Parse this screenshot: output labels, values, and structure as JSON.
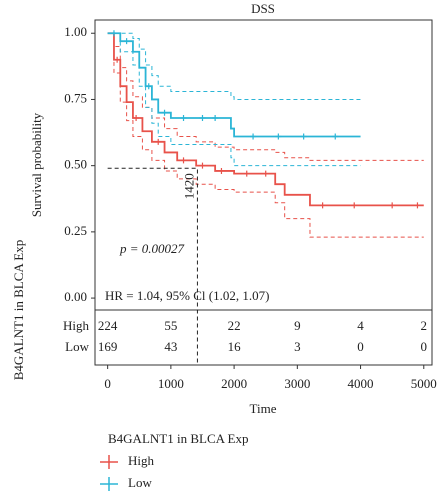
{
  "chart_data": {
    "type": "survival",
    "title": "DSS",
    "y_label": "Survival probability",
    "x_label": "Time",
    "xlim": [
      -200,
      5130
    ],
    "ylim": [
      -0.045,
      1.05
    ],
    "xticks": [
      0,
      1000,
      2000,
      3000,
      4000,
      5000
    ],
    "yticks": [
      {
        "value": 0,
        "label": "0.00"
      },
      {
        "value": 0.25,
        "label": "0.25"
      },
      {
        "value": 0.5,
        "label": "0.50"
      },
      {
        "value": 0.75,
        "label": "0.75"
      },
      {
        "value": 1,
        "label": "1.00"
      }
    ],
    "legend_title": "B4GALNT1 in BLCA Exp",
    "series": [
      {
        "name": "High",
        "color": "#e8524a",
        "x": [
          0,
          100,
          200,
          300,
          400,
          550,
          700,
          900,
          1100,
          1400,
          1700,
          2000,
          2650,
          2800,
          3200,
          5000
        ],
        "values": [
          1,
          0.9,
          0.8,
          0.74,
          0.68,
          0.63,
          0.59,
          0.55,
          0.52,
          0.5,
          0.48,
          0.47,
          0.43,
          0.39,
          0.35,
          0.35
        ],
        "upper": [
          1,
          0.95,
          0.87,
          0.82,
          0.76,
          0.72,
          0.68,
          0.64,
          0.61,
          0.59,
          0.57,
          0.56,
          0.55,
          0.53,
          0.52,
          0.52
        ],
        "lower": [
          1,
          0.85,
          0.74,
          0.67,
          0.61,
          0.56,
          0.52,
          0.48,
          0.45,
          0.43,
          0.41,
          0.4,
          0.36,
          0.3,
          0.23,
          0.23
        ],
        "censor": [
          150,
          450,
          800,
          1200,
          1500,
          1800,
          2200,
          2500,
          3400,
          3900,
          4500,
          4900
        ]
      },
      {
        "name": "Low",
        "color": "#2bb5d6",
        "x": [
          0,
          200,
          400,
          500,
          600,
          700,
          800,
          1000,
          1950,
          2000,
          4000
        ],
        "values": [
          1,
          0.97,
          0.93,
          0.87,
          0.8,
          0.75,
          0.7,
          0.68,
          0.64,
          0.61,
          0.61
        ],
        "upper": [
          1,
          1,
          0.98,
          0.94,
          0.88,
          0.84,
          0.8,
          0.78,
          0.76,
          0.75,
          0.75
        ],
        "lower": [
          1,
          0.93,
          0.88,
          0.8,
          0.72,
          0.66,
          0.61,
          0.58,
          0.53,
          0.5,
          0.5
        ],
        "censor": [
          100,
          300,
          650,
          900,
          1200,
          1500,
          1700,
          2300,
          2700,
          3100,
          3600
        ]
      }
    ],
    "median": {
      "x": 1420,
      "y": 0.49
    },
    "median_label": 1420,
    "p_value_text": "p = 0.00027",
    "hr_text": "HR = 1.04, 95% Cl (1.02, 1.07)",
    "risk_table": {
      "strata": [
        "High",
        "Low"
      ],
      "counts": [
        [
          224,
          55,
          22,
          9,
          4,
          2
        ],
        [
          169,
          43,
          16,
          3,
          0,
          0
        ]
      ]
    }
  }
}
